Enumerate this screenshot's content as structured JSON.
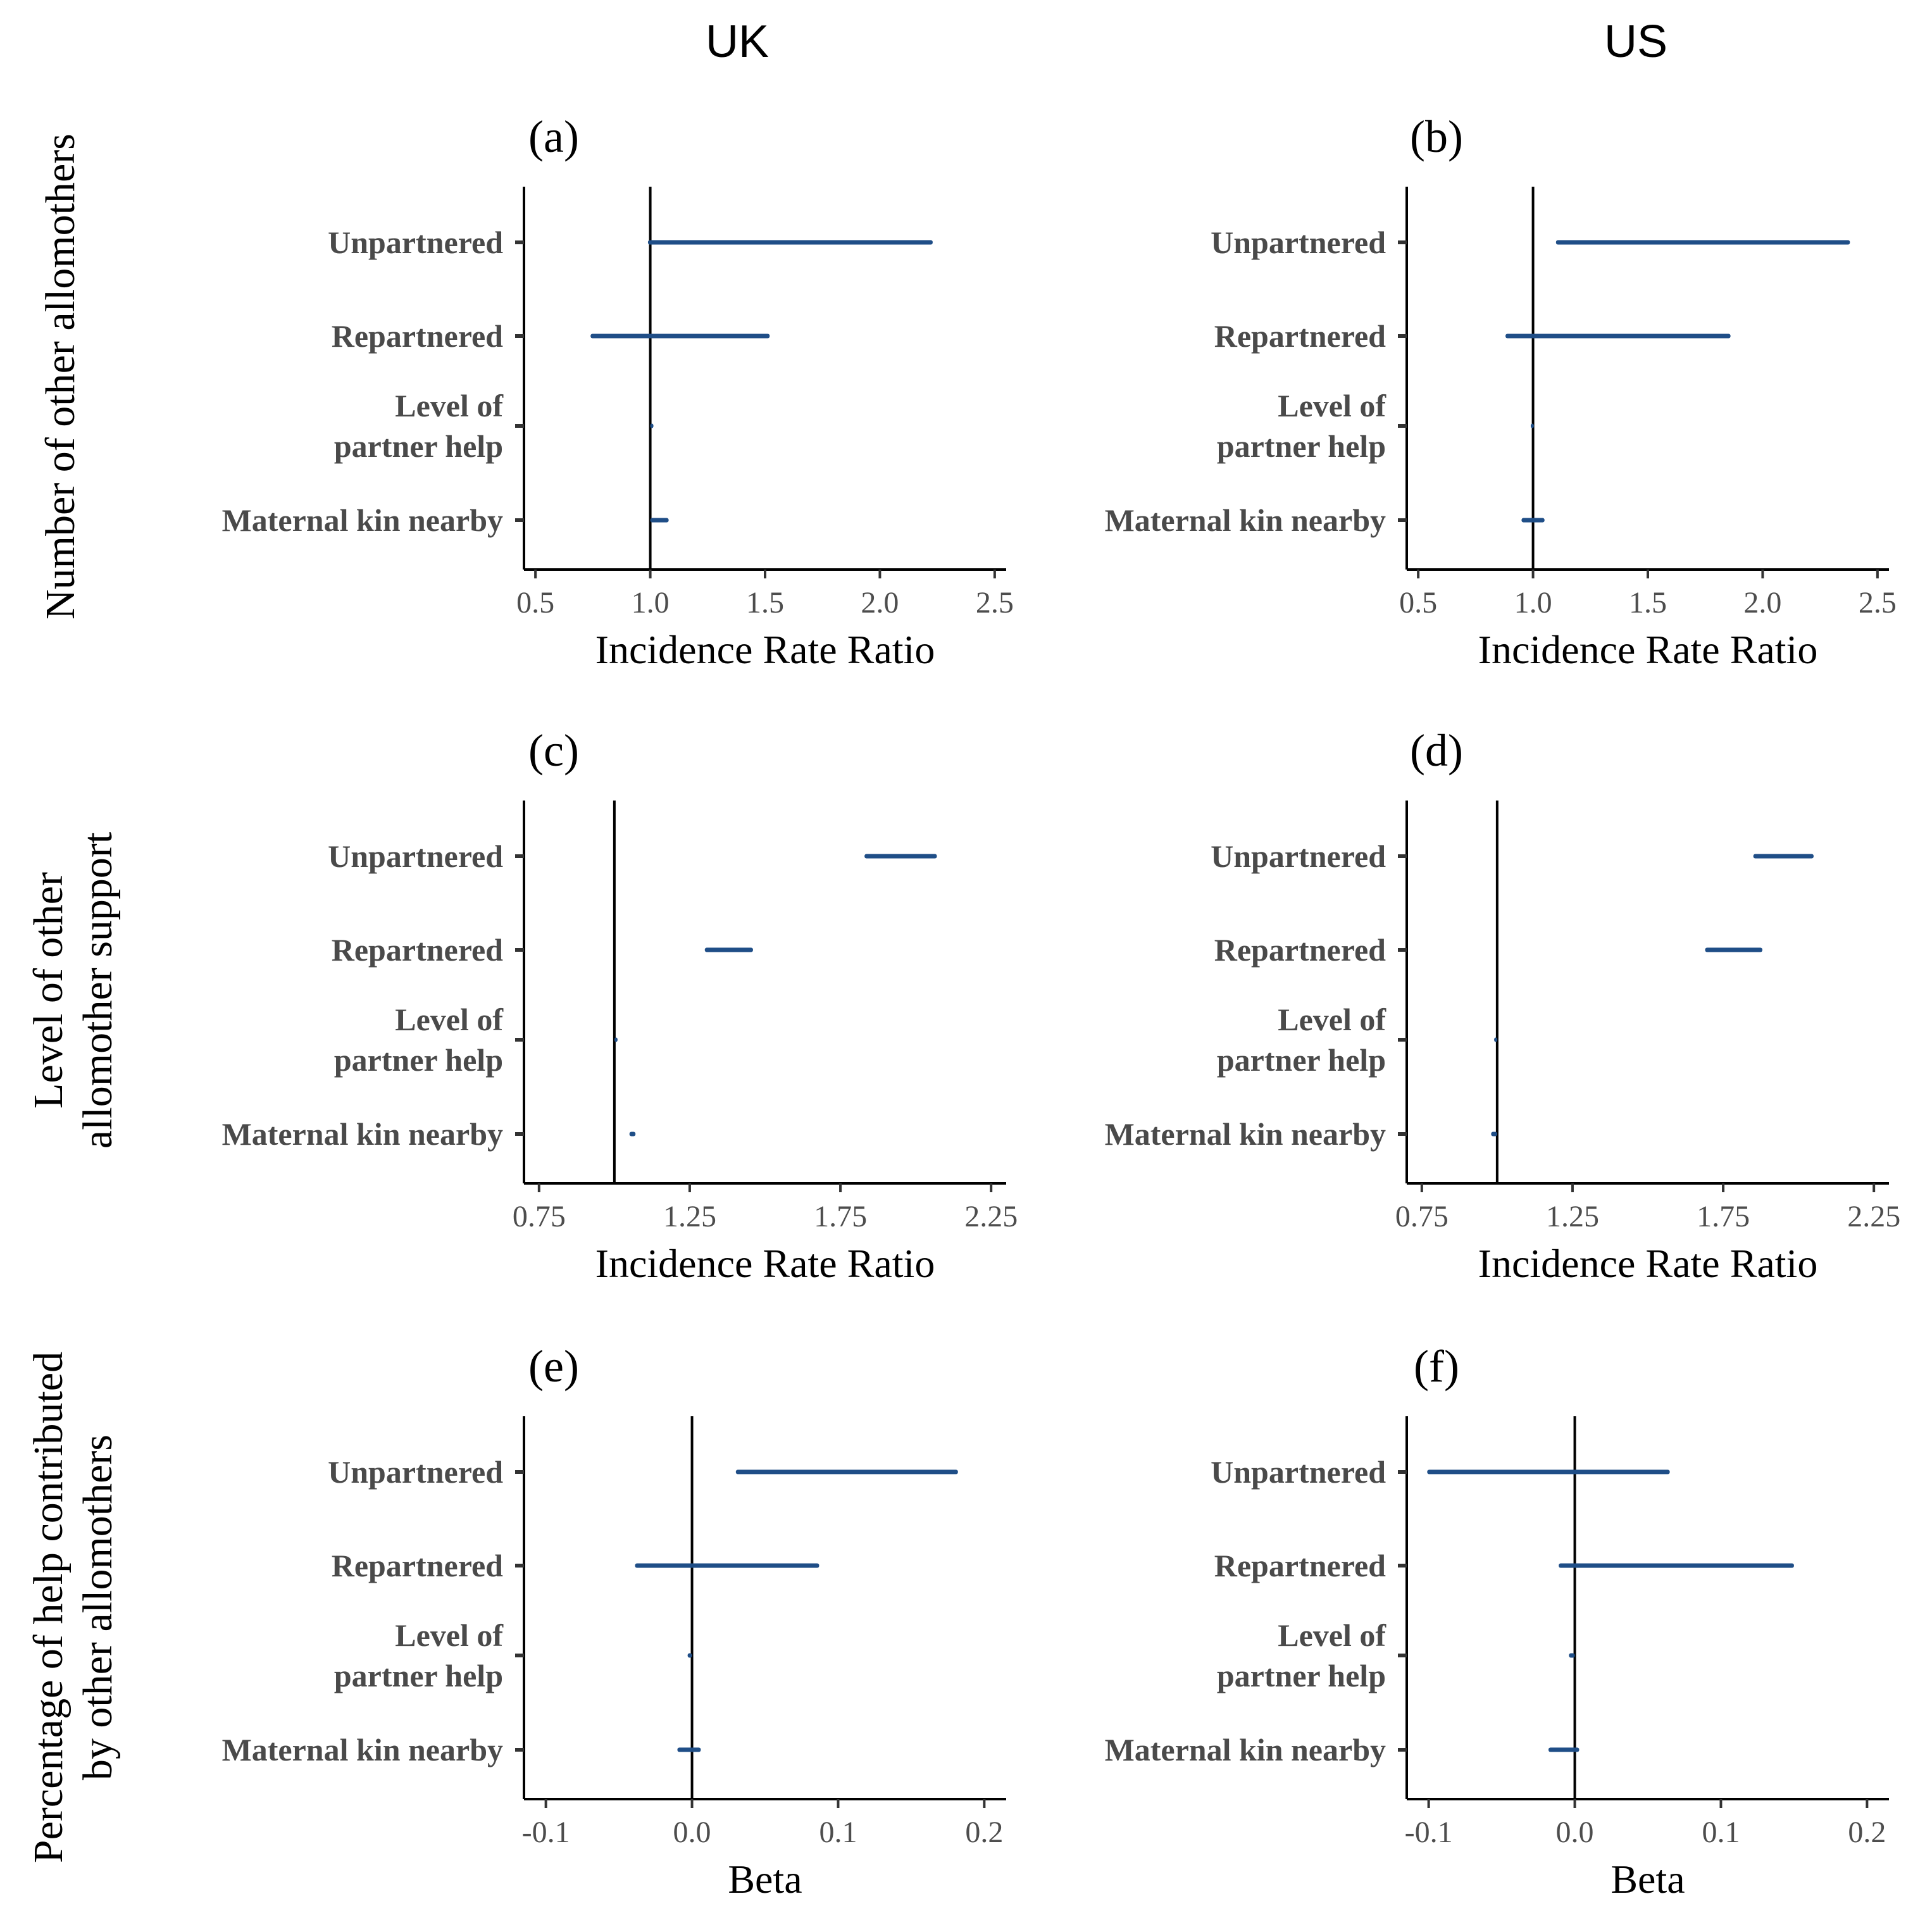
{
  "column_titles": [
    "UK",
    "US"
  ],
  "row_titles": [
    [
      "Number of other allomothers"
    ],
    [
      "Level of other",
      "allomother support"
    ],
    [
      "Percentage of help contributed",
      "by other allomothers"
    ]
  ],
  "colors": {
    "interval": "#1f4e87",
    "reference_line": "#000000",
    "axis": "#000000"
  },
  "chart_data": [
    {
      "type": "interval",
      "panel": "(a)",
      "country": "UK",
      "xlabel": "Incidence Rate Ratio",
      "xlim": [
        0.45,
        2.55
      ],
      "ticks": [
        0.5,
        1.0,
        1.5,
        2.0,
        2.5
      ],
      "tick_labels": [
        "0.5",
        "1.0",
        "1.5",
        "2.0",
        "2.5"
      ],
      "reference": 1.0,
      "categories": [
        [
          "Unpartnered"
        ],
        [
          "Repartnered"
        ],
        [
          "Level of",
          "partner help"
        ],
        [
          "Maternal kin nearby"
        ]
      ],
      "intervals": [
        [
          0.99,
          2.23
        ],
        [
          0.74,
          1.52
        ],
        [
          1.0,
          1.01
        ],
        [
          1.0,
          1.08
        ]
      ]
    },
    {
      "type": "interval",
      "panel": "(b)",
      "country": "US",
      "xlabel": "Incidence Rate Ratio",
      "xlim": [
        0.45,
        2.55
      ],
      "ticks": [
        0.5,
        1.0,
        1.5,
        2.0,
        2.5
      ],
      "tick_labels": [
        "0.5",
        "1.0",
        "1.5",
        "2.0",
        "2.5"
      ],
      "reference": 1.0,
      "categories": [
        [
          "Unpartnered"
        ],
        [
          "Repartnered"
        ],
        [
          "Level of",
          "partner help"
        ],
        [
          "Maternal kin nearby"
        ]
      ],
      "intervals": [
        [
          1.1,
          2.38
        ],
        [
          0.88,
          1.86
        ],
        [
          0.99,
          1.0
        ],
        [
          0.95,
          1.05
        ]
      ]
    },
    {
      "type": "interval",
      "panel": "(c)",
      "country": "UK",
      "xlabel": "Incidence Rate Ratio",
      "xlim": [
        0.7,
        2.3
      ],
      "ticks": [
        0.75,
        1.25,
        1.75,
        2.25
      ],
      "tick_labels": [
        "0.75",
        "1.25",
        "1.75",
        "2.25"
      ],
      "reference": 1.0,
      "categories": [
        [
          "Unpartnered"
        ],
        [
          "Repartnered"
        ],
        [
          "Level of",
          "partner help"
        ],
        [
          "Maternal kin nearby"
        ]
      ],
      "intervals": [
        [
          1.83,
          2.07
        ],
        [
          1.3,
          1.46
        ],
        [
          1.0,
          1.01
        ],
        [
          1.05,
          1.07
        ]
      ]
    },
    {
      "type": "interval",
      "panel": "(d)",
      "country": "US",
      "xlabel": "Incidence Rate Ratio",
      "xlim": [
        0.7,
        2.3
      ],
      "ticks": [
        0.75,
        1.25,
        1.75,
        2.25
      ],
      "tick_labels": [
        "0.75",
        "1.25",
        "1.75",
        "2.25"
      ],
      "reference": 1.0,
      "categories": [
        [
          "Unpartnered"
        ],
        [
          "Repartnered"
        ],
        [
          "Level of",
          "partner help"
        ],
        [
          "Maternal kin nearby"
        ]
      ],
      "intervals": [
        [
          1.85,
          2.05
        ],
        [
          1.69,
          1.88
        ],
        [
          0.99,
          1.0
        ],
        [
          0.98,
          1.0
        ]
      ]
    },
    {
      "type": "interval",
      "panel": "(e)",
      "country": "UK",
      "xlabel": "Beta",
      "xlim": [
        -0.115,
        0.215
      ],
      "ticks": [
        -0.1,
        0.0,
        0.1,
        0.2
      ],
      "tick_labels": [
        "-0.1",
        "0.0",
        "0.1",
        "0.2"
      ],
      "reference": 0.0,
      "categories": [
        [
          "Unpartnered"
        ],
        [
          "Repartnered"
        ],
        [
          "Level of",
          "partner help"
        ],
        [
          "Maternal kin nearby"
        ]
      ],
      "intervals": [
        [
          0.03,
          0.182
        ],
        [
          -0.039,
          0.087
        ],
        [
          -0.003,
          0.0
        ],
        [
          -0.01,
          0.006
        ]
      ]
    },
    {
      "type": "interval",
      "panel": "(f)",
      "country": "US",
      "xlabel": "Beta",
      "xlim": [
        -0.115,
        0.215
      ],
      "ticks": [
        -0.1,
        0.0,
        0.1,
        0.2
      ],
      "tick_labels": [
        "-0.1",
        "0.0",
        "0.1",
        "0.2"
      ],
      "reference": 0.0,
      "categories": [
        [
          "Unpartnered"
        ],
        [
          "Repartnered"
        ],
        [
          "Level of",
          "partner help"
        ],
        [
          "Maternal kin nearby"
        ]
      ],
      "intervals": [
        [
          -0.101,
          0.065
        ],
        [
          -0.011,
          0.15
        ],
        [
          -0.004,
          0.0
        ],
        [
          -0.018,
          0.003
        ]
      ]
    }
  ]
}
